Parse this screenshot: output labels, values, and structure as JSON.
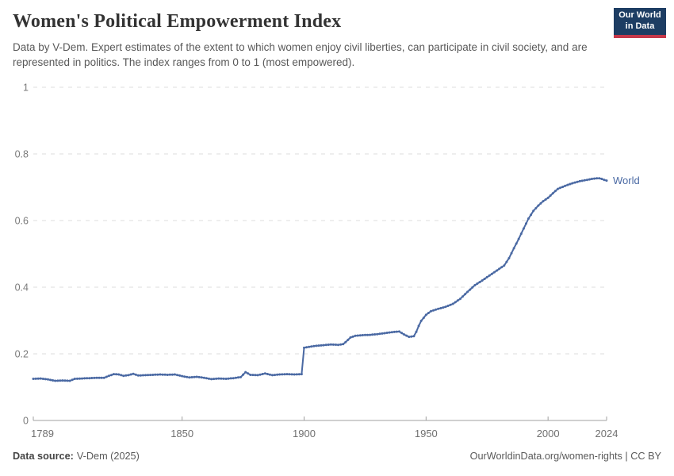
{
  "header": {
    "title": "Women's Political Empowerment Index",
    "subtitle": "Data by V-Dem. Expert estimates of the extent to which women enjoy civil liberties, can participate in civil society, and are represented in politics. The index ranges from 0 to 1 (most empowered).",
    "logo": {
      "line1": "Our World",
      "line2": "in Data",
      "bg_color": "#1d3d63",
      "accent_color": "#c5384a"
    }
  },
  "footer": {
    "source_label": "Data source:",
    "source_value": "V-Dem (2025)",
    "right_text": "OurWorldinData.org/women-rights | CC BY"
  },
  "chart_data": {
    "type": "line",
    "title": "Women's Political Empowerment Index",
    "xlabel": "",
    "ylabel": "",
    "xlim": [
      1789,
      2024
    ],
    "ylim": [
      0,
      1
    ],
    "xticks": [
      1789,
      1850,
      1900,
      1950,
      2000,
      2024
    ],
    "yticks": [
      0,
      0.2,
      0.4,
      0.6,
      0.8,
      1
    ],
    "grid": "horizontal-dashed",
    "gridline_color": "#dedede",
    "axis_color": "#a0a0a0",
    "series": [
      {
        "name": "World",
        "color": "#4a69a3",
        "points": [
          [
            1789,
            0.125
          ],
          [
            1792,
            0.126
          ],
          [
            1795,
            0.123
          ],
          [
            1798,
            0.119
          ],
          [
            1801,
            0.12
          ],
          [
            1804,
            0.119
          ],
          [
            1806,
            0.125
          ],
          [
            1809,
            0.126
          ],
          [
            1812,
            0.127
          ],
          [
            1815,
            0.128
          ],
          [
            1818,
            0.128
          ],
          [
            1820,
            0.134
          ],
          [
            1822,
            0.139
          ],
          [
            1824,
            0.138
          ],
          [
            1826,
            0.134
          ],
          [
            1828,
            0.136
          ],
          [
            1830,
            0.14
          ],
          [
            1832,
            0.135
          ],
          [
            1835,
            0.136
          ],
          [
            1838,
            0.137
          ],
          [
            1841,
            0.138
          ],
          [
            1844,
            0.137
          ],
          [
            1847,
            0.138
          ],
          [
            1850,
            0.133
          ],
          [
            1853,
            0.129
          ],
          [
            1856,
            0.131
          ],
          [
            1859,
            0.128
          ],
          [
            1862,
            0.124
          ],
          [
            1865,
            0.126
          ],
          [
            1868,
            0.125
          ],
          [
            1871,
            0.127
          ],
          [
            1874,
            0.13
          ],
          [
            1876,
            0.145
          ],
          [
            1878,
            0.137
          ],
          [
            1881,
            0.136
          ],
          [
            1884,
            0.141
          ],
          [
            1887,
            0.136
          ],
          [
            1890,
            0.138
          ],
          [
            1893,
            0.139
          ],
          [
            1896,
            0.138
          ],
          [
            1899,
            0.139
          ],
          [
            1900,
            0.218
          ],
          [
            1902,
            0.221
          ],
          [
            1905,
            0.224
          ],
          [
            1908,
            0.226
          ],
          [
            1911,
            0.228
          ],
          [
            1914,
            0.227
          ],
          [
            1916,
            0.229
          ],
          [
            1917,
            0.235
          ],
          [
            1919,
            0.249
          ],
          [
            1921,
            0.254
          ],
          [
            1924,
            0.256
          ],
          [
            1927,
            0.257
          ],
          [
            1930,
            0.259
          ],
          [
            1933,
            0.262
          ],
          [
            1936,
            0.265
          ],
          [
            1939,
            0.267
          ],
          [
            1941,
            0.258
          ],
          [
            1943,
            0.251
          ],
          [
            1945,
            0.253
          ],
          [
            1946,
            0.266
          ],
          [
            1947,
            0.284
          ],
          [
            1948,
            0.299
          ],
          [
            1950,
            0.317
          ],
          [
            1952,
            0.328
          ],
          [
            1955,
            0.335
          ],
          [
            1958,
            0.341
          ],
          [
            1961,
            0.35
          ],
          [
            1964,
            0.365
          ],
          [
            1967,
            0.386
          ],
          [
            1970,
            0.406
          ],
          [
            1973,
            0.42
          ],
          [
            1976,
            0.435
          ],
          [
            1979,
            0.45
          ],
          [
            1982,
            0.465
          ],
          [
            1984,
            0.487
          ],
          [
            1986,
            0.517
          ],
          [
            1988,
            0.545
          ],
          [
            1990,
            0.576
          ],
          [
            1992,
            0.606
          ],
          [
            1994,
            0.629
          ],
          [
            1996,
            0.645
          ],
          [
            1998,
            0.658
          ],
          [
            2000,
            0.668
          ],
          [
            2002,
            0.682
          ],
          [
            2004,
            0.695
          ],
          [
            2006,
            0.701
          ],
          [
            2008,
            0.707
          ],
          [
            2010,
            0.712
          ],
          [
            2013,
            0.718
          ],
          [
            2016,
            0.722
          ],
          [
            2018,
            0.725
          ],
          [
            2020,
            0.727
          ],
          [
            2021,
            0.727
          ],
          [
            2022,
            0.725
          ],
          [
            2023,
            0.722
          ],
          [
            2024,
            0.72
          ]
        ]
      }
    ]
  }
}
